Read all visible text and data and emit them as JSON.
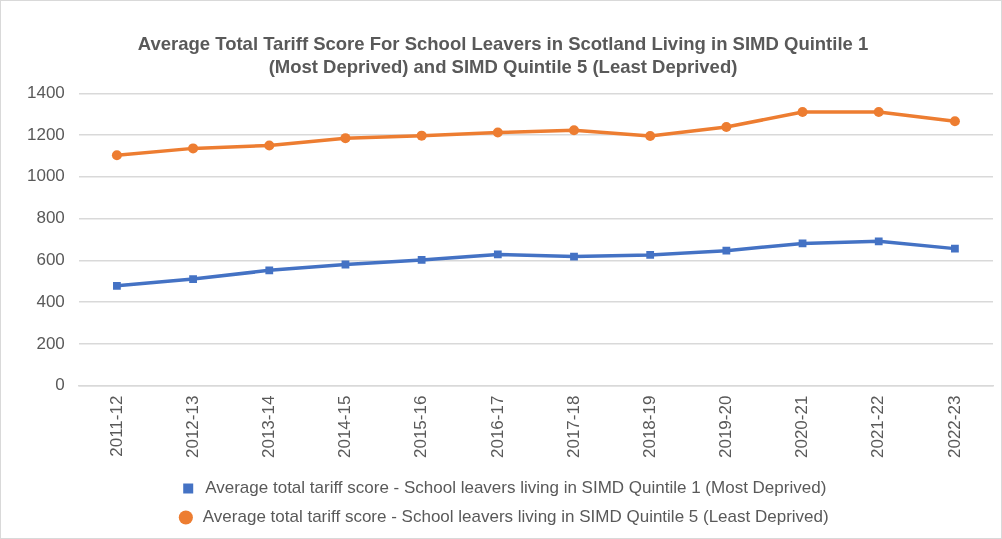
{
  "chart_data": {
    "type": "line",
    "title": "Average Total Tariff Score For School Leavers in Scotland Living in SIMD Quintile 1 (Most Deprived) and SIMD Quintile 5 (Least Deprived)",
    "categories": [
      "2011-12",
      "2012-13",
      "2013-14",
      "2014-15",
      "2015-16",
      "2016-17",
      "2017-18",
      "2018-19",
      "2019-20",
      "2020-21",
      "2021-22",
      "2022-23"
    ],
    "series": [
      {
        "name": "Average total tariff score - School leavers living in SIMD Quintile 1 (Most Deprived)",
        "color": "#4472c4",
        "marker": "square",
        "values": [
          478,
          510,
          552,
          580,
          602,
          628,
          618,
          626,
          646,
          681,
          691,
          656
        ]
      },
      {
        "name": "Average total tariff score - School leavers living in SIMD Quintile 5 (Least Deprived)",
        "color": "#ed7d31",
        "marker": "circle",
        "values": [
          1103,
          1136,
          1150,
          1185,
          1197,
          1212,
          1223,
          1195,
          1238,
          1310,
          1310,
          1266
        ]
      }
    ],
    "ylim": [
      0,
      1400
    ],
    "yticks": [
      0,
      200,
      400,
      600,
      800,
      1000,
      1200,
      1400
    ],
    "grid": "y",
    "legend": "bottom",
    "line_style": "solid"
  }
}
